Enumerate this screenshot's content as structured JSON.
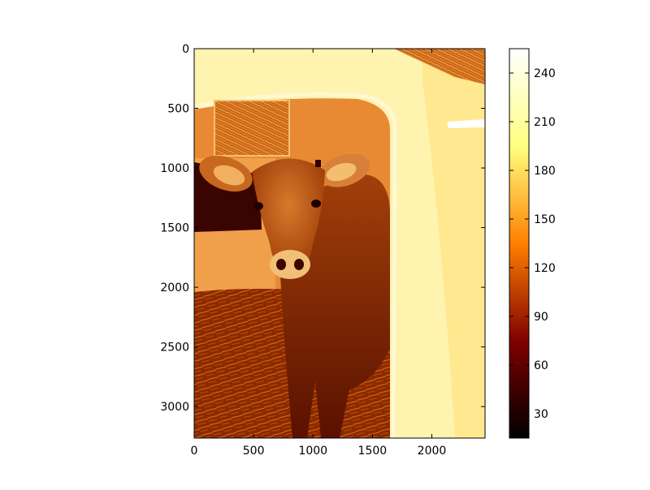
{
  "chart_data": {
    "type": "heatmap",
    "title": "",
    "xlabel": "",
    "ylabel": "",
    "image_description": "calf standing in the doorway of a white calf hutch on straw bedding, rendered with the afmhot colormap",
    "image_extent": {
      "width": 2448,
      "height": 3264
    },
    "xlim": [
      0,
      2448
    ],
    "ylim": [
      3264,
      0
    ],
    "xticks": [
      0,
      500,
      1000,
      1500,
      2000
    ],
    "yticks": [
      0,
      500,
      1000,
      1500,
      2000,
      2500,
      3000
    ],
    "colormap": "afmhot",
    "colorbar": {
      "range": [
        15,
        255
      ],
      "ticks": [
        30,
        60,
        90,
        120,
        150,
        180,
        210,
        240
      ]
    }
  }
}
